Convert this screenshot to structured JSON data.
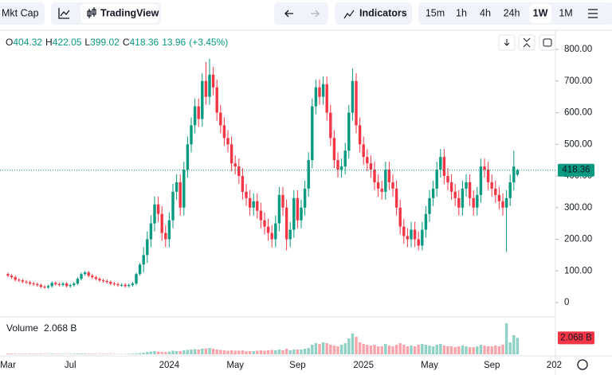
{
  "toolbar": {
    "market_cap": "Mkt Cap",
    "source": "TradingView",
    "indicators": "Indicators",
    "timeframes": [
      "15m",
      "1h",
      "4h",
      "24h",
      "1W",
      "1M"
    ],
    "active_timeframe": "1W"
  },
  "chart_data": {
    "type": "candlestick",
    "legend": {
      "open_label": "O",
      "high_label": "H",
      "low_label": "L",
      "close_label": "C",
      "change": 13.96,
      "change_pct": "(+3.45%)"
    },
    "up_color": "#089981",
    "down_color": "#f23645",
    "categories": [
      "Mar",
      null,
      null,
      null,
      null,
      null,
      null,
      null,
      null,
      null,
      null,
      null,
      null,
      null,
      null,
      null,
      null,
      "Jul",
      null,
      null,
      null,
      null,
      null,
      null,
      null,
      null,
      null,
      null,
      null,
      null,
      null,
      null,
      null,
      null,
      null,
      null,
      null,
      null,
      null,
      null,
      null,
      null,
      null,
      null,
      "2024",
      null,
      null,
      null,
      null,
      null,
      null,
      null,
      null,
      null,
      null,
      null,
      null,
      null,
      null,
      null,
      null,
      null,
      "May",
      null,
      null,
      null,
      null,
      null,
      null,
      null,
      null,
      null,
      null,
      null,
      null,
      null,
      null,
      null,
      null,
      "Sep",
      null,
      null,
      null,
      null,
      null,
      null,
      null,
      null,
      null,
      null,
      null,
      null,
      null,
      null,
      null,
      null,
      null,
      "2025",
      null,
      null,
      null,
      null,
      null,
      null,
      null,
      null,
      null,
      null,
      null,
      null,
      null,
      null,
      null,
      null,
      null,
      "May",
      null,
      null,
      null,
      null,
      null,
      null,
      null,
      null,
      null,
      null,
      null,
      null,
      null,
      null,
      null,
      null,
      "Sep",
      null,
      null,
      null,
      null,
      null,
      null,
      null,
      null,
      null,
      null,
      null,
      null,
      null,
      null,
      null,
      null,
      "202"
    ],
    "open": [
      90,
      85,
      80,
      72,
      70,
      66,
      64,
      60,
      58,
      55,
      50,
      48,
      52,
      62,
      58,
      56,
      60,
      52,
      55,
      60,
      75,
      90,
      95,
      85,
      80,
      75,
      70,
      68,
      65,
      60,
      58,
      55,
      56,
      52,
      55,
      60,
      90,
      120,
      150,
      200,
      250,
      310,
      280,
      220,
      200,
      260,
      350,
      380,
      300,
      420,
      500,
      560,
      620,
      580,
      700,
      650,
      720,
      680,
      600,
      560,
      520,
      500,
      440,
      430,
      400,
      350,
      330,
      300,
      320,
      290,
      260,
      240,
      220,
      200,
      250,
      340,
      300,
      200,
      230,
      330,
      260,
      300,
      360,
      450,
      620,
      680,
      650,
      690,
      600,
      520,
      450,
      420,
      430,
      480,
      600,
      700,
      560,
      500,
      460,
      440,
      420,
      380,
      360,
      350,
      420,
      380,
      360,
      300,
      240,
      210,
      200,
      230,
      200,
      180,
      230,
      280,
      330,
      360,
      420,
      460,
      400,
      380,
      350,
      330,
      300,
      360,
      380,
      330,
      300,
      340,
      430,
      420,
      380,
      360,
      340,
      320,
      300,
      330,
      380,
      404.32,
      null,
      null,
      null,
      null,
      null,
      null,
      null,
      null,
      null,
      null
    ],
    "high": [
      95,
      90,
      85,
      77,
      75,
      71,
      69,
      65,
      63,
      60,
      55,
      57,
      67,
      67,
      63,
      65,
      65,
      60,
      65,
      80,
      95,
      100,
      100,
      90,
      85,
      80,
      75,
      73,
      70,
      65,
      63,
      61,
      61,
      60,
      65,
      95,
      125,
      175,
      225,
      275,
      335,
      335,
      305,
      245,
      285,
      375,
      405,
      405,
      445,
      525,
      585,
      645,
      645,
      725,
      760,
      770,
      745,
      705,
      625,
      585,
      545,
      525,
      465,
      455,
      425,
      375,
      355,
      345,
      345,
      315,
      285,
      265,
      245,
      275,
      365,
      365,
      325,
      255,
      355,
      355,
      325,
      385,
      475,
      645,
      705,
      705,
      715,
      715,
      625,
      545,
      475,
      455,
      505,
      625,
      740,
      725,
      585,
      525,
      485,
      465,
      445,
      405,
      385,
      445,
      445,
      405,
      385,
      325,
      265,
      235,
      255,
      255,
      225,
      255,
      305,
      355,
      385,
      445,
      485,
      485,
      425,
      405,
      375,
      355,
      385,
      405,
      405,
      355,
      365,
      455,
      455,
      445,
      405,
      385,
      365,
      345,
      355,
      405,
      480,
      422.05,
      null,
      null,
      null,
      null,
      null,
      null,
      null,
      null,
      null,
      null
    ],
    "low": [
      80,
      75,
      67,
      65,
      61,
      59,
      55,
      53,
      50,
      45,
      43,
      43,
      47,
      53,
      51,
      51,
      47,
      47,
      50,
      55,
      70,
      85,
      80,
      75,
      70,
      65,
      63,
      60,
      55,
      53,
      50,
      50,
      47,
      47,
      50,
      55,
      85,
      95,
      125,
      175,
      225,
      255,
      195,
      175,
      175,
      235,
      325,
      275,
      275,
      395,
      475,
      535,
      555,
      555,
      625,
      625,
      655,
      575,
      535,
      495,
      475,
      415,
      405,
      375,
      325,
      305,
      275,
      275,
      265,
      235,
      215,
      195,
      175,
      175,
      225,
      275,
      165,
      175,
      205,
      235,
      235,
      275,
      335,
      425,
      595,
      625,
      625,
      575,
      495,
      425,
      395,
      395,
      405,
      455,
      575,
      535,
      475,
      435,
      415,
      395,
      355,
      335,
      325,
      325,
      355,
      335,
      275,
      215,
      185,
      175,
      175,
      175,
      165,
      165,
      205,
      255,
      305,
      335,
      395,
      375,
      355,
      325,
      305,
      275,
      275,
      335,
      305,
      275,
      275,
      315,
      395,
      355,
      335,
      315,
      295,
      275,
      160,
      305,
      355,
      399.02,
      null,
      null,
      null,
      null,
      null,
      null,
      null,
      null,
      null,
      null
    ],
    "close": [
      85,
      80,
      72,
      70,
      66,
      64,
      60,
      58,
      55,
      50,
      48,
      52,
      62,
      58,
      56,
      60,
      52,
      55,
      60,
      75,
      90,
      95,
      85,
      80,
      75,
      70,
      68,
      65,
      60,
      58,
      55,
      56,
      52,
      55,
      60,
      90,
      120,
      150,
      200,
      250,
      310,
      280,
      220,
      200,
      260,
      350,
      380,
      300,
      420,
      500,
      560,
      620,
      580,
      700,
      650,
      720,
      680,
      600,
      560,
      520,
      500,
      440,
      430,
      400,
      350,
      330,
      300,
      320,
      290,
      260,
      240,
      220,
      200,
      250,
      340,
      300,
      200,
      230,
      330,
      260,
      300,
      360,
      450,
      620,
      680,
      650,
      690,
      600,
      520,
      450,
      420,
      430,
      480,
      600,
      700,
      560,
      500,
      460,
      440,
      420,
      380,
      360,
      350,
      420,
      380,
      360,
      300,
      240,
      210,
      200,
      230,
      200,
      180,
      230,
      280,
      330,
      360,
      420,
      460,
      400,
      380,
      350,
      330,
      300,
      360,
      380,
      330,
      300,
      340,
      430,
      420,
      380,
      360,
      340,
      320,
      300,
      330,
      380,
      430,
      418.36,
      null,
      null,
      null,
      null,
      null,
      null,
      null,
      null,
      null,
      null
    ],
    "last_price_label": "418.36",
    "volume_label": "Volume",
    "last_volume_label": "2.068 B",
    "volume_lim": [
      0,
      4.5
    ],
    "volumes": [
      0.1,
      0.08,
      0.08,
      0.07,
      0.06,
      0.06,
      0.06,
      0.05,
      0.05,
      0.06,
      0.05,
      0.05,
      0.07,
      0.05,
      0.05,
      0.05,
      0.05,
      0.05,
      0.06,
      0.08,
      0.1,
      0.08,
      0.07,
      0.06,
      0.05,
      0.05,
      0.05,
      0.05,
      0.05,
      0.04,
      0.04,
      0.04,
      0.04,
      0.05,
      0.08,
      0.12,
      0.15,
      0.2,
      0.3,
      0.35,
      0.4,
      0.35,
      0.3,
      0.3,
      0.35,
      0.45,
      0.4,
      0.4,
      0.5,
      0.55,
      0.6,
      0.65,
      0.6,
      0.7,
      0.75,
      0.8,
      0.7,
      0.6,
      0.55,
      0.5,
      0.45,
      0.5,
      0.45,
      0.45,
      0.5,
      0.4,
      0.4,
      0.4,
      0.45,
      0.5,
      0.45,
      0.5,
      0.55,
      0.5,
      0.6,
      0.5,
      0.7,
      0.5,
      0.6,
      0.6,
      0.6,
      0.7,
      0.8,
      1.2,
      1.4,
      1.3,
      1.5,
      1.4,
      1.2,
      1.1,
      1.0,
      1.2,
      1.4,
      2.0,
      2.6,
      2.2,
      1.5,
      1.3,
      1.2,
      1.1,
      1.2,
      1.0,
      1.0,
      1.3,
      1.1,
      1.0,
      1.2,
      1.4,
      1.2,
      1.0,
      1.1,
      1.0,
      1.2,
      1.3,
      1.2,
      1.1,
      1.0,
      1.2,
      1.3,
      1.1,
      1.0,
      1.0,
      0.9,
      1.0,
      1.1,
      1.0,
      0.9,
      0.9,
      1.0,
      1.2,
      1.1,
      1.0,
      1.0,
      1.1,
      1.0,
      1.2,
      3.9,
      1.5,
      2.4,
      2.068,
      null,
      null,
      null,
      null,
      null,
      null,
      null,
      null,
      null,
      null
    ],
    "ylim": [
      0,
      800
    ],
    "yticks": [
      0,
      {
        "value": 100,
        "label": "100.00"
      },
      {
        "value": 200,
        "label": "200.00"
      },
      {
        "value": 300,
        "label": "300.00"
      },
      {
        "value": 400,
        "label": "400.00"
      },
      {
        "value": 500,
        "label": "500.00"
      },
      {
        "value": 600,
        "label": "600.00"
      },
      {
        "value": 700,
        "label": "700.00"
      },
      {
        "value": 800,
        "label": "800.00"
      }
    ],
    "grid": false
  }
}
